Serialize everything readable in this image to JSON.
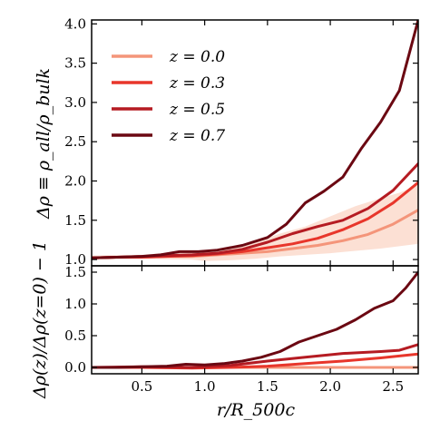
{
  "chart_data": [
    {
      "type": "line",
      "panel": "top",
      "ylabel": "Δρ ≡ ρ_all/ρ_bulk",
      "xlim": [
        0.1,
        2.7
      ],
      "ylim": [
        0.92,
        4.05
      ],
      "yticks": [
        1.0,
        1.5,
        2.0,
        2.5,
        3.0,
        3.5,
        4.0
      ],
      "ytick_labels": [
        "1.0",
        "1.5",
        "2.0",
        "2.5",
        "3.0",
        "3.5",
        "4.0"
      ],
      "legend": {
        "placement": "top-left"
      },
      "band": {
        "color": "#fbd5c6",
        "x": [
          0.1,
          0.5,
          0.9,
          1.0,
          1.2,
          1.4,
          1.6,
          1.8,
          2.0,
          2.2,
          2.4,
          2.55,
          2.7
        ],
        "lower": [
          1.0,
          1.01,
          1.0,
          0.98,
          0.99,
          1.01,
          1.04,
          1.06,
          1.08,
          1.11,
          1.14,
          1.17,
          1.2
        ],
        "upper": [
          1.05,
          1.06,
          1.11,
          1.1,
          1.15,
          1.22,
          1.33,
          1.42,
          1.55,
          1.68,
          1.78,
          1.85,
          1.95
        ]
      },
      "series": [
        {
          "name": "z = 0.0",
          "color": "#f4957a",
          "x": [
            0.1,
            0.3,
            0.5,
            0.7,
            0.9,
            1.1,
            1.3,
            1.5,
            1.7,
            1.9,
            2.1,
            2.3,
            2.5,
            2.7
          ],
          "y": [
            1.02,
            1.03,
            1.03,
            1.04,
            1.04,
            1.06,
            1.08,
            1.1,
            1.14,
            1.18,
            1.24,
            1.32,
            1.45,
            1.63
          ]
        },
        {
          "name": "z = 0.3",
          "color": "#e8362b",
          "x": [
            0.1,
            0.3,
            0.5,
            0.7,
            0.9,
            1.1,
            1.3,
            1.5,
            1.7,
            1.9,
            2.1,
            2.3,
            2.5,
            2.7
          ],
          "y": [
            1.02,
            1.03,
            1.03,
            1.04,
            1.05,
            1.07,
            1.1,
            1.15,
            1.2,
            1.27,
            1.38,
            1.52,
            1.72,
            1.98
          ]
        },
        {
          "name": "z = 0.5",
          "color": "#b51b22",
          "x": [
            0.1,
            0.3,
            0.5,
            0.7,
            0.9,
            1.1,
            1.3,
            1.5,
            1.7,
            1.9,
            2.1,
            2.3,
            2.5,
            2.7
          ],
          "y": [
            1.02,
            1.03,
            1.04,
            1.05,
            1.06,
            1.08,
            1.13,
            1.22,
            1.33,
            1.42,
            1.5,
            1.65,
            1.88,
            2.22
          ]
        },
        {
          "name": "z = 0.7",
          "color": "#6b0812",
          "x": [
            0.1,
            0.3,
            0.5,
            0.65,
            0.8,
            0.95,
            1.1,
            1.3,
            1.5,
            1.65,
            1.8,
            1.95,
            2.1,
            2.25,
            2.4,
            2.55,
            2.7
          ],
          "y": [
            1.02,
            1.03,
            1.04,
            1.06,
            1.1,
            1.1,
            1.12,
            1.18,
            1.28,
            1.45,
            1.72,
            1.87,
            2.05,
            2.42,
            2.75,
            3.15,
            4.05
          ]
        }
      ]
    },
    {
      "type": "line",
      "panel": "bottom",
      "ylabel": "Δρ(z)/Δρ(z=0) − 1",
      "xlabel": "r/R_500c",
      "xlim": [
        0.1,
        2.7
      ],
      "ylim": [
        -0.1,
        1.6
      ],
      "xticks": [
        0.5,
        1.0,
        1.5,
        2.0,
        2.5
      ],
      "xtick_labels": [
        "0.5",
        "1.0",
        "1.5",
        "2.0",
        "2.5"
      ],
      "yticks": [
        0.0,
        0.5,
        1.0,
        1.5
      ],
      "ytick_labels": [
        "0.0",
        "0.5",
        "1.0",
        "1.5"
      ],
      "series": [
        {
          "name": "z = 0.0",
          "color": "#f4957a",
          "x": [
            0.1,
            2.7
          ],
          "y": [
            0.0,
            0.0
          ]
        },
        {
          "name": "z = 0.3",
          "color": "#e8362b",
          "x": [
            0.1,
            0.5,
            0.9,
            1.2,
            1.5,
            1.8,
            2.1,
            2.4,
            2.55,
            2.7
          ],
          "y": [
            0.0,
            0.0,
            -0.01,
            0.0,
            0.02,
            0.06,
            0.1,
            0.15,
            0.18,
            0.21
          ]
        },
        {
          "name": "z = 0.5",
          "color": "#b51b22",
          "x": [
            0.1,
            0.5,
            0.9,
            1.2,
            1.5,
            1.8,
            2.1,
            2.4,
            2.55,
            2.7
          ],
          "y": [
            0.0,
            0.01,
            0.0,
            0.03,
            0.1,
            0.16,
            0.22,
            0.25,
            0.27,
            0.36
          ]
        },
        {
          "name": "z = 0.7",
          "color": "#6b0812",
          "x": [
            0.1,
            0.3,
            0.5,
            0.7,
            0.85,
            1.0,
            1.15,
            1.3,
            1.45,
            1.6,
            1.75,
            1.9,
            2.05,
            2.2,
            2.35,
            2.5,
            2.6,
            2.7
          ],
          "y": [
            0.0,
            0.0,
            0.01,
            0.02,
            0.05,
            0.04,
            0.06,
            0.1,
            0.16,
            0.25,
            0.4,
            0.5,
            0.6,
            0.75,
            0.93,
            1.05,
            1.25,
            1.5
          ]
        }
      ]
    }
  ]
}
